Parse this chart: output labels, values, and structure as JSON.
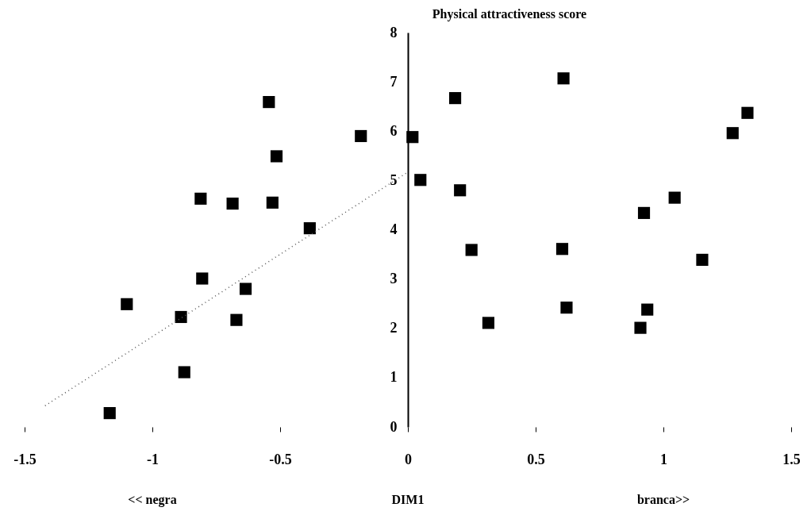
{
  "chart_data": {
    "type": "scatter",
    "ylabel": "Physical attractiveness score",
    "xlabel": "DIM1",
    "annotations": [
      "<< negra",
      "branca>>"
    ],
    "xlim": [
      -1.5,
      1.5
    ],
    "xticks": [
      -1.5,
      -1,
      -0.5,
      0,
      0.5,
      1,
      1.5
    ],
    "ylim": [
      0,
      8
    ],
    "yticks": [
      0,
      1,
      2,
      3,
      4,
      5,
      6,
      7,
      8
    ],
    "marker": "square",
    "series": [
      {
        "color": "#000000",
        "x": [
          -1.167,
          -1.1,
          -0.888,
          -0.875,
          -0.811,
          -0.805,
          -0.686,
          -0.671,
          -0.635,
          -0.544,
          -0.53,
          -0.514,
          -0.384,
          -0.184,
          0.018,
          0.049,
          0.185,
          0.204,
          0.249,
          0.315,
          0.609,
          0.604,
          0.621,
          0.91,
          0.924,
          0.937,
          1.044,
          1.152,
          1.271,
          1.329
        ],
        "values": [
          0.28,
          2.49,
          2.23,
          1.11,
          4.63,
          3.01,
          4.53,
          2.17,
          2.8,
          6.59,
          4.55,
          5.49,
          4.03,
          5.9,
          5.88,
          5.01,
          6.67,
          4.8,
          3.59,
          2.11,
          7.07,
          3.61,
          2.42,
          2.01,
          4.34,
          2.38,
          4.65,
          3.39,
          5.96,
          6.37
        ]
      },
      {
        "type": "line",
        "color": "#555555",
        "line_style": "dotted",
        "marker": "none",
        "x": [
          -1.42,
          0
        ],
        "values": [
          0.43,
          5.17
        ]
      }
    ]
  }
}
